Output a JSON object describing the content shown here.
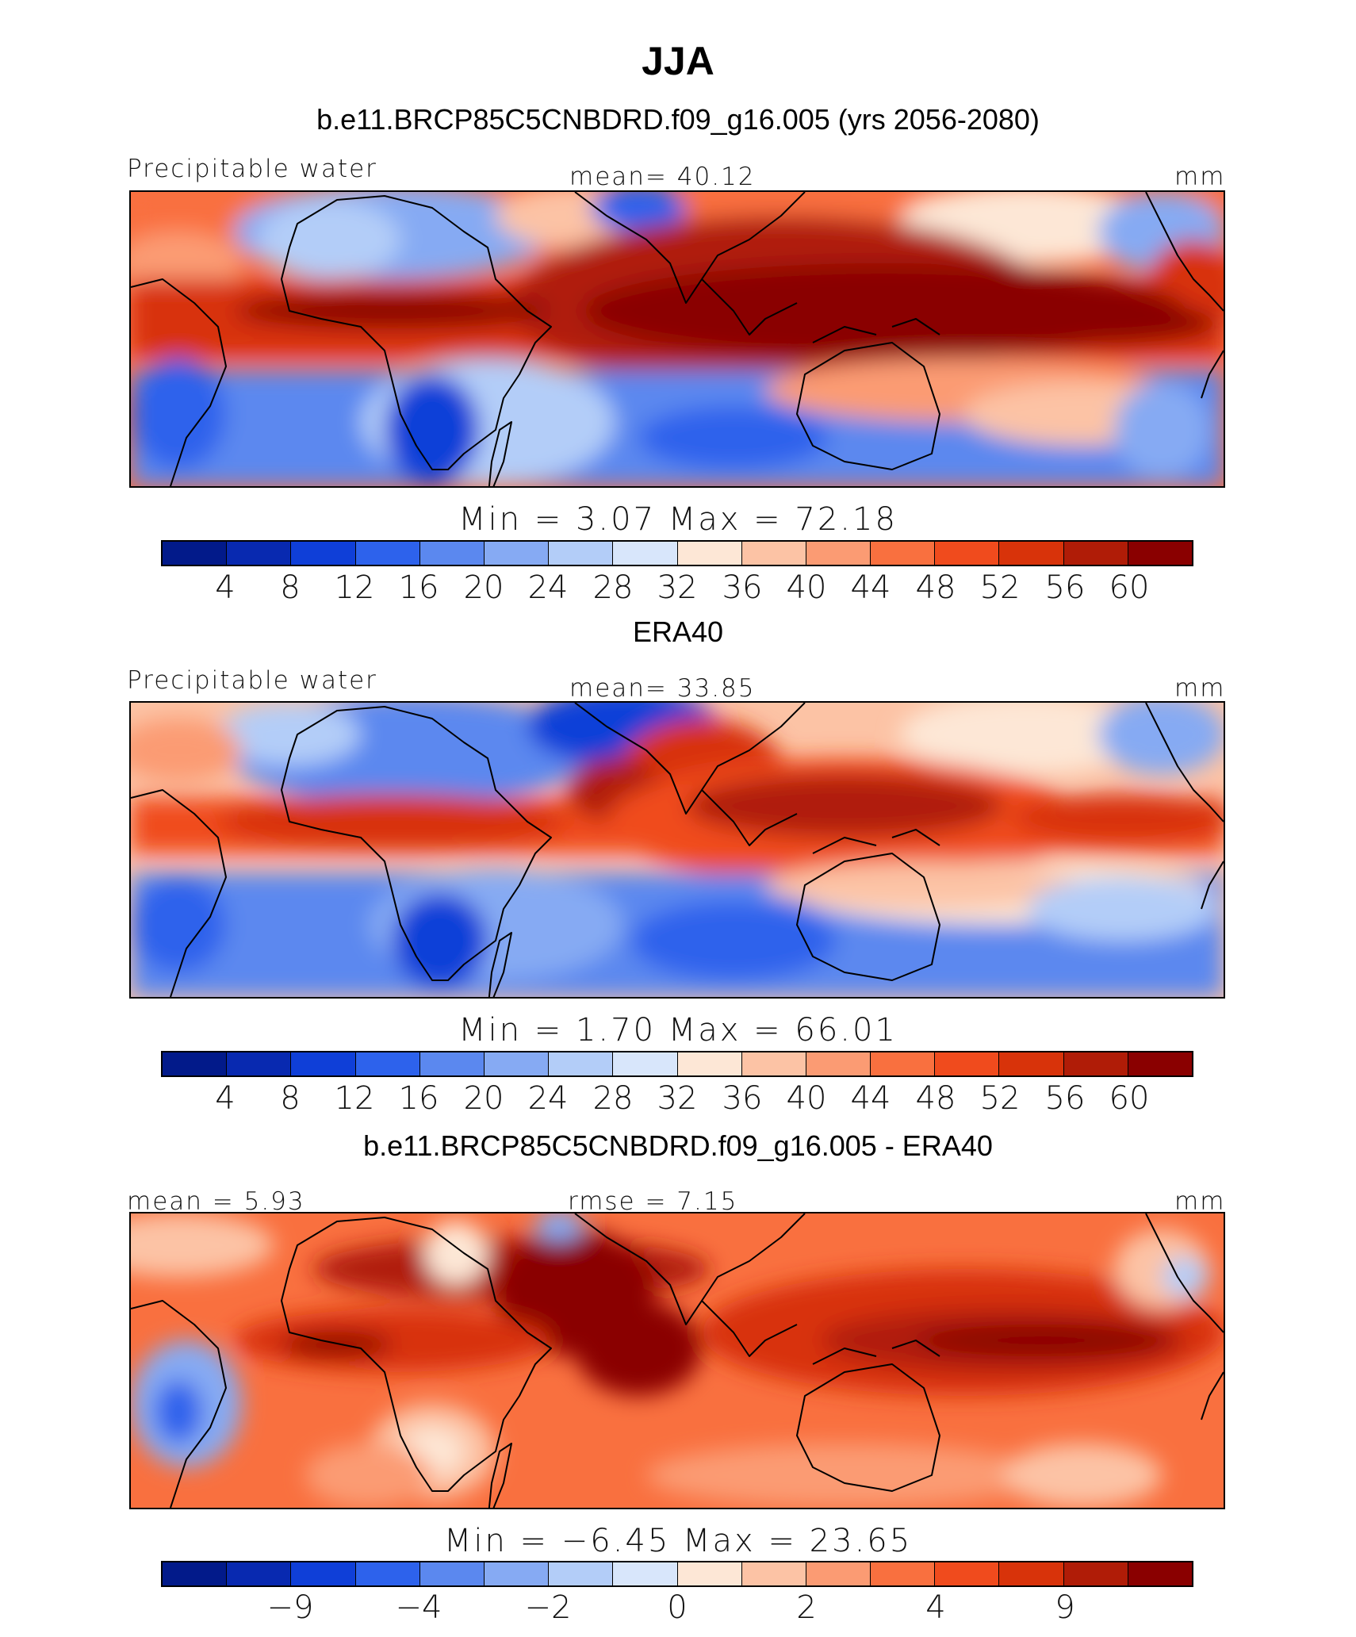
{
  "title": "JJA",
  "panels": [
    {
      "subtitle": "b.e11.BRCP85C5CNBDRD.f09_g16.005 (yrs 2056-2080)",
      "left_label": "Precipitable water",
      "center_label": "mean=   40.12",
      "units": "mm",
      "minmax": "Min =    3.07  Max =   72.18",
      "colorbar_ticks": [
        "4",
        "8",
        "12",
        "16",
        "20",
        "24",
        "28",
        "32",
        "36",
        "40",
        "44",
        "48",
        "52",
        "56",
        "60"
      ]
    },
    {
      "subtitle": "ERA40",
      "left_label": "Precipitable water",
      "center_label": "mean=   33.85",
      "units": "mm",
      "minmax": "Min =    1.70  Max =   66.01",
      "colorbar_ticks": [
        "4",
        "8",
        "12",
        "16",
        "20",
        "24",
        "28",
        "32",
        "36",
        "40",
        "44",
        "48",
        "52",
        "56",
        "60"
      ]
    },
    {
      "subtitle": "b.e11.BRCP85C5CNBDRD.f09_g16.005 - ERA40",
      "left_label": "mean =    5.93",
      "center_label": "rmse =    7.15",
      "units": "mm",
      "minmax": "Min =  −6.45  Max =   23.65",
      "colorbar_ticks": [
        "−9",
        "",
        "−4",
        "",
        "−2",
        "",
        "0",
        "",
        "2",
        "",
        "4",
        "",
        "9"
      ]
    }
  ],
  "colorbar_colors": [
    "#8a0000",
    "#b01c07",
    "#d8330a",
    "#f04b1d",
    "#f9703f",
    "#fb9b73",
    "#fcc3a5",
    "#fde7d6",
    "#d8e6fb",
    "#b3cdf8",
    "#86aaf3",
    "#5b88ef",
    "#2d62ec",
    "#0f3fd8",
    "#0829b0",
    "#021a8a"
  ],
  "colors": {
    "deep_red": "#8a0000",
    "light_neutral": "#fde7d6",
    "deep_blue": "#021a8a"
  }
}
